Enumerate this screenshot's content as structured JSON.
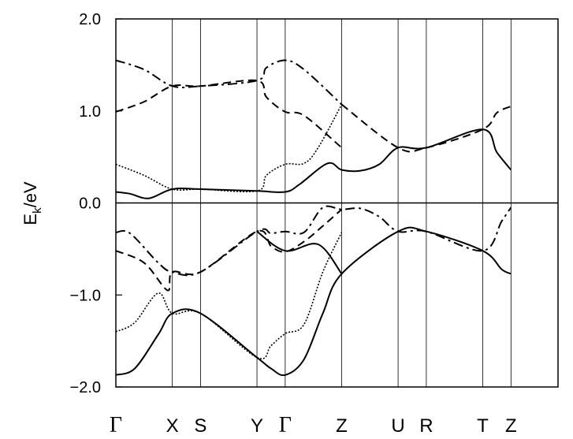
{
  "chart_data": {
    "type": "line",
    "title": "",
    "xlabel": "",
    "ylabel": "E",
    "ylabel_sub": "k",
    "ylabel_unit": "/eV",
    "ylim": [
      -2.0,
      2.0
    ],
    "yticks": [
      {
        "value": 2.0,
        "label": "2.0"
      },
      {
        "value": 1.0,
        "label": "1.0"
      },
      {
        "value": 0.0,
        "label": "0.0"
      },
      {
        "value": -1.0,
        "label": "−1.0"
      },
      {
        "value": -2.0,
        "label": "−2.0"
      }
    ],
    "xlim": [
      0,
      4.7
    ],
    "kpoints": [
      {
        "label": "Γ",
        "x": 0.0,
        "greek": true
      },
      {
        "label": "X",
        "x": 0.6,
        "greek": false
      },
      {
        "label": "S",
        "x": 0.9,
        "greek": false
      },
      {
        "label": "Y",
        "x": 1.5,
        "greek": false
      },
      {
        "label": "Γ",
        "x": 1.8,
        "greek": true
      },
      {
        "label": "Z",
        "x": 2.4,
        "greek": false
      },
      {
        "label": "U",
        "x": 3.0,
        "greek": false
      },
      {
        "label": "R",
        "x": 3.3,
        "greek": false
      },
      {
        "label": "T",
        "x": 3.9,
        "greek": false
      },
      {
        "label": "Z",
        "x": 4.2,
        "greek": false
      }
    ],
    "fermi_level": 0.0,
    "grid": false,
    "series": [
      {
        "style": "dashdot",
        "x": [
          0,
          0.3,
          0.6,
          0.9,
          1.5,
          1.6,
          1.8,
          2.0,
          2.4
        ],
        "y": [
          1.55,
          1.45,
          1.27,
          1.27,
          1.33,
          1.47,
          1.55,
          1.45,
          1.07
        ]
      },
      {
        "style": "dashed",
        "x": [
          0,
          0.3,
          0.6,
          0.9,
          1.5,
          1.6,
          1.8,
          2.0,
          2.4
        ],
        "y": [
          0.99,
          1.1,
          1.27,
          1.27,
          1.33,
          1.15,
          0.99,
          0.95,
          0.6
        ]
      },
      {
        "style": "dashed",
        "x": [
          2.4,
          3.0,
          3.3,
          3.9,
          4.05,
          4.2
        ],
        "y": [
          1.07,
          0.6,
          0.6,
          0.8,
          0.98,
          1.05
        ]
      },
      {
        "style": "dotted",
        "x": [
          0,
          0.3,
          0.6,
          0.9,
          1.5,
          1.6,
          1.8,
          2.0,
          2.15,
          2.4
        ],
        "y": [
          0.42,
          0.3,
          0.15,
          0.15,
          0.13,
          0.3,
          0.42,
          0.43,
          0.6,
          1.07
        ]
      },
      {
        "style": "solid",
        "x": [
          0,
          0.15,
          0.35,
          0.6,
          0.9,
          1.5,
          1.8,
          1.95,
          2.25,
          2.4,
          2.6,
          2.8,
          3.0,
          3.3,
          3.9,
          4.05,
          4.2
        ],
        "y": [
          0.12,
          0.1,
          0.05,
          0.15,
          0.15,
          0.13,
          0.12,
          0.2,
          0.43,
          0.36,
          0.35,
          0.42,
          0.6,
          0.6,
          0.8,
          0.55,
          0.36
        ]
      },
      {
        "style": "dashdot",
        "x": [
          0,
          0.15,
          0.45,
          0.6,
          0.9,
          1.5,
          1.65,
          1.8,
          2.0,
          2.2,
          2.4,
          2.6,
          2.8,
          3.0,
          3.3,
          3.9,
          4.1,
          4.2
        ],
        "y": [
          -0.32,
          -0.33,
          -0.65,
          -0.75,
          -0.75,
          -0.31,
          -0.33,
          -0.31,
          -0.32,
          -0.05,
          -0.07,
          -0.06,
          -0.15,
          -0.31,
          -0.31,
          -0.52,
          -0.2,
          -0.05
        ]
      },
      {
        "style": "dashed",
        "x": [
          0,
          0.3,
          0.55,
          0.6,
          0.9,
          1.5,
          1.65,
          1.8,
          2.0,
          2.2,
          2.4
        ],
        "y": [
          -0.52,
          -0.65,
          -0.95,
          -0.75,
          -0.75,
          -0.31,
          -0.47,
          -0.53,
          -0.42,
          -0.25,
          -0.07
        ]
      },
      {
        "style": "dotted",
        "x": [
          0,
          0.2,
          0.45,
          0.6,
          0.9,
          1.5,
          1.65,
          1.8,
          2.0,
          2.2,
          2.4
        ],
        "y": [
          -1.4,
          -1.3,
          -0.98,
          -1.2,
          -1.2,
          -1.68,
          -1.55,
          -1.42,
          -1.32,
          -0.75,
          -0.32
        ]
      },
      {
        "style": "solid",
        "x": [
          0,
          0.2,
          0.45,
          0.6,
          0.9,
          1.5,
          1.65,
          1.8,
          2.0,
          2.2,
          2.4,
          3.0,
          3.3,
          3.9,
          4.1,
          4.2
        ],
        "y": [
          -1.87,
          -1.8,
          -1.43,
          -1.2,
          -1.2,
          -1.68,
          -1.8,
          -1.87,
          -1.7,
          -1.2,
          -0.77,
          -0.31,
          -0.31,
          -0.52,
          -0.72,
          -0.77
        ]
      },
      {
        "style": "solid",
        "x": [
          1.5,
          1.8,
          2.15,
          2.4
        ],
        "y": [
          -0.31,
          -0.52,
          -0.45,
          -0.77
        ]
      }
    ]
  }
}
